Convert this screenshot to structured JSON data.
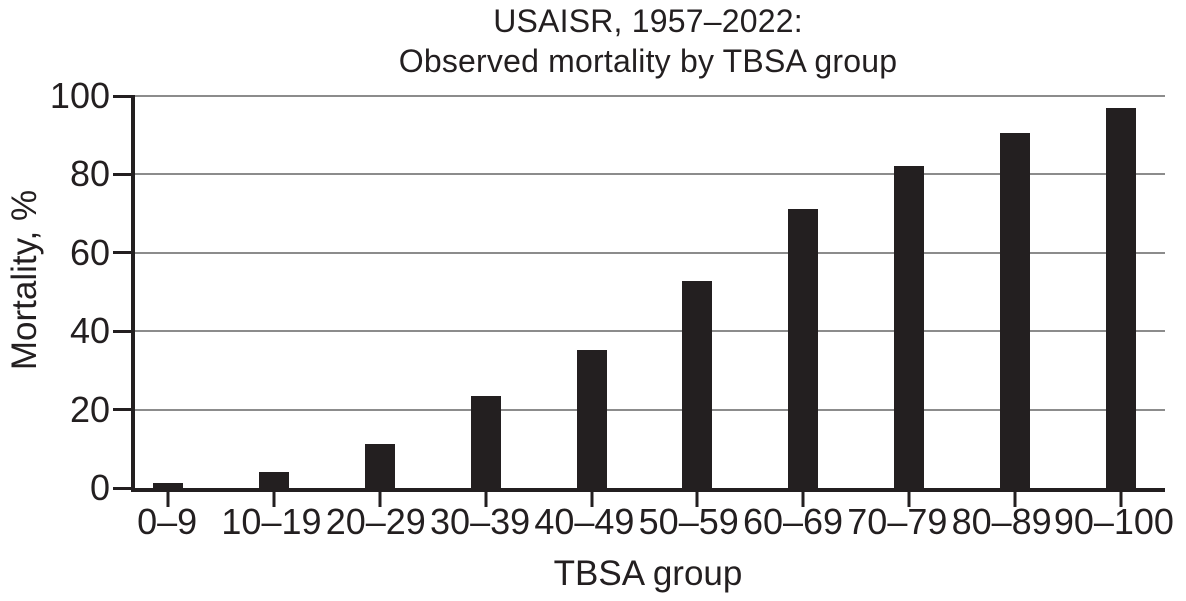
{
  "chart_data": {
    "type": "bar",
    "title_line1": "USAISR, 1957–2022:",
    "title_line2": "Observed mortality by TBSA group",
    "xlabel": "TBSA group",
    "ylabel": "Mortality, %",
    "categories": [
      "0–9",
      "10–19",
      "20–29",
      "30–39",
      "40–49",
      "50–59",
      "60–69",
      "70–79",
      "80–89",
      "90–100"
    ],
    "values": [
      1.3,
      4.0,
      11.3,
      23.4,
      35.2,
      52.8,
      71.3,
      82.2,
      90.6,
      97.0
    ],
    "ylim": [
      0,
      100
    ],
    "yticks": [
      0,
      20,
      40,
      60,
      80,
      100
    ],
    "grid": "horizontal",
    "legend": "none",
    "bar_color": "#231f20",
    "axis_color": "#231f20",
    "gridline_color": "#8c8c8c",
    "text_color": "#231f20",
    "background_color": "#ffffff"
  }
}
